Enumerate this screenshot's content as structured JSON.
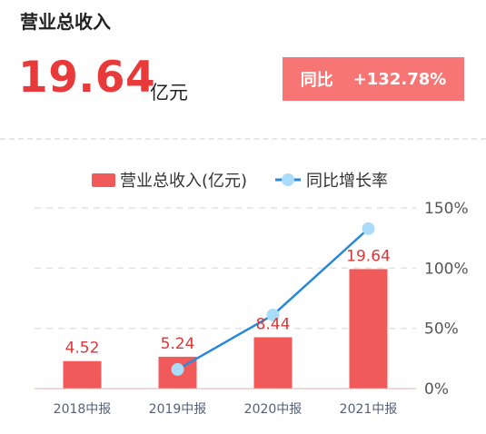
{
  "header": {
    "title": "营业总收入"
  },
  "metric": {
    "value": "19.64",
    "unit": "亿元"
  },
  "yoy": {
    "label": "同比",
    "value": "+132.78%"
  },
  "colors": {
    "accent": "#e83a3a",
    "bar": "#f05a5a",
    "line": "#2a88d8",
    "marker": "#a9dcf8",
    "badge": "#f77575"
  },
  "chart_data": {
    "type": "bar",
    "categories": [
      "2018中报",
      "2019中报",
      "2020中报",
      "2021中报"
    ],
    "legend_position": "top",
    "grid": true,
    "series": [
      {
        "name": "营业总收入(亿元)",
        "type": "bar",
        "values": [
          4.52,
          5.24,
          8.44,
          19.64
        ],
        "labels": [
          "4.52",
          "5.24",
          "8.44",
          "19.64"
        ]
      },
      {
        "name": "同比增长率",
        "type": "line",
        "values": [
          null,
          15.9,
          61.1,
          132.78
        ]
      }
    ],
    "y_right": {
      "ticks": [
        "0%",
        "50%",
        "100%",
        "150%"
      ],
      "lim": [
        0,
        150
      ]
    },
    "y_left_lim": [
      0,
      29.7
    ]
  }
}
